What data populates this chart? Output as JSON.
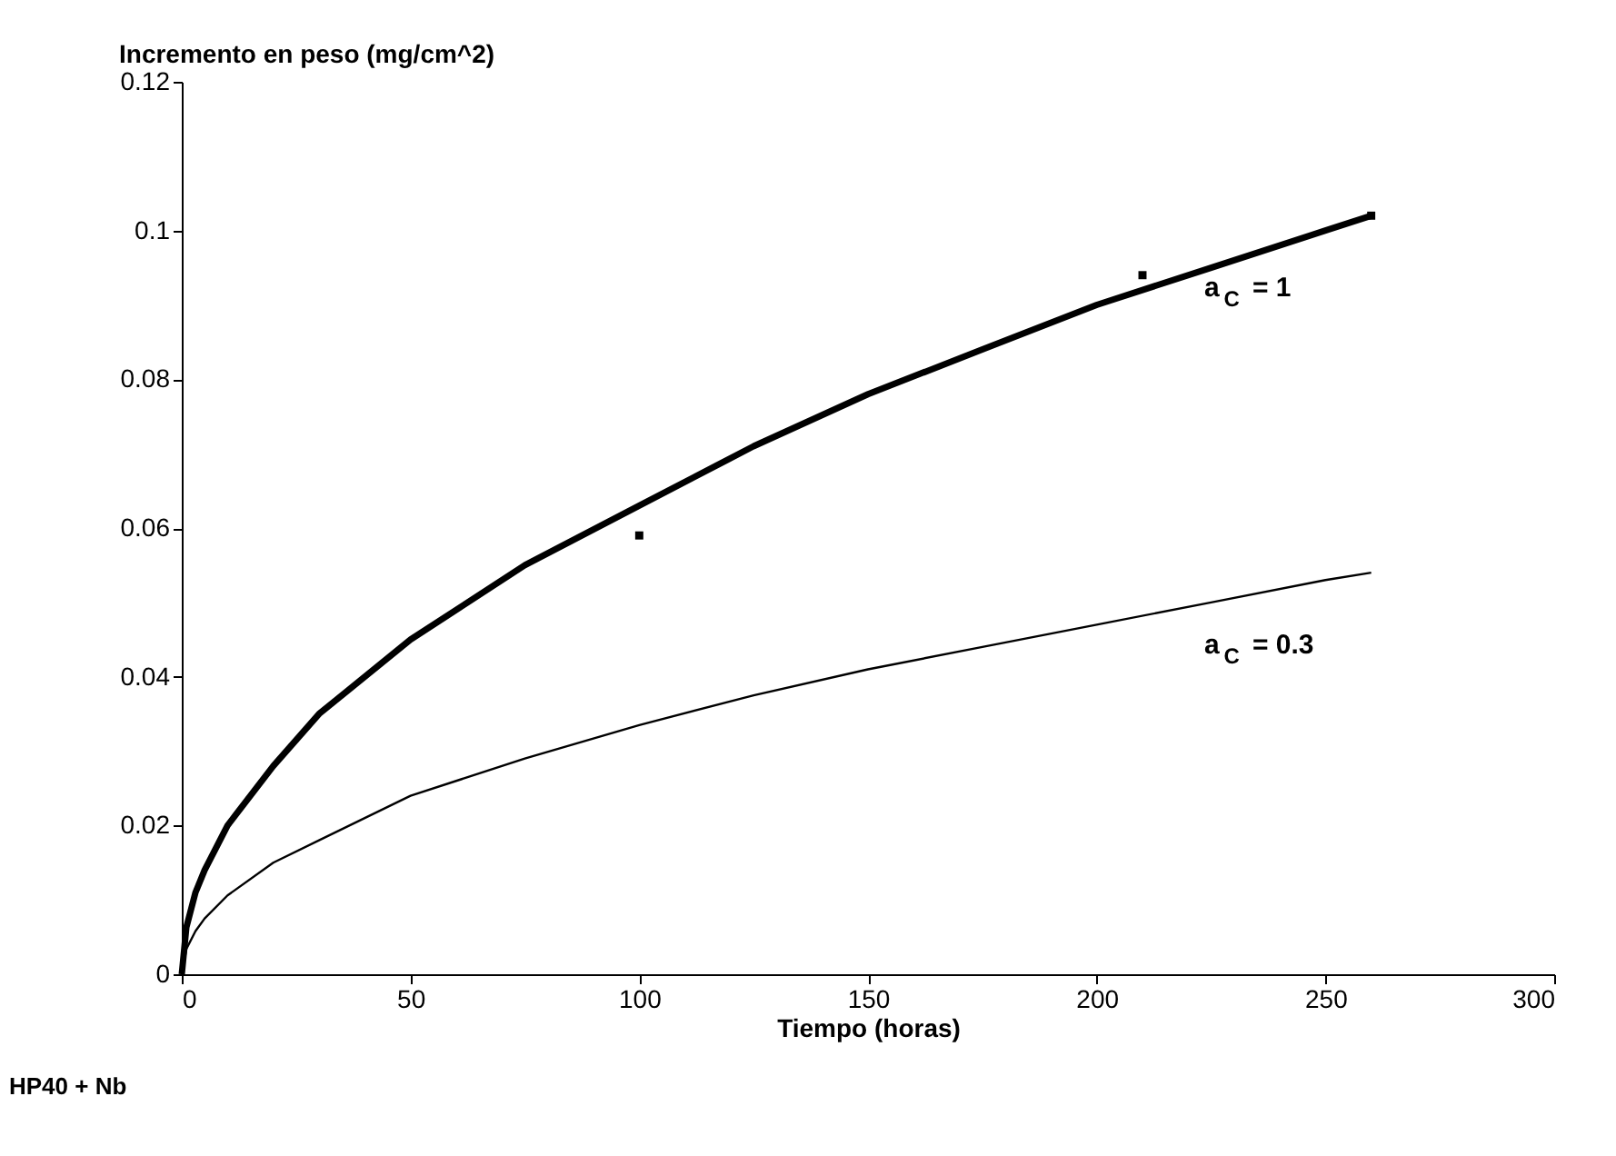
{
  "chart_data": {
    "type": "line",
    "xlabel": "Tiempo (horas)",
    "ylabel": "Incremento en peso (mg/cm^2)",
    "xlim": [
      0,
      300
    ],
    "xticks": [
      0,
      50,
      100,
      150,
      200,
      250,
      300
    ],
    "ylim": [
      0,
      0.12
    ],
    "yticks": [
      0,
      0.02,
      0.04,
      0.06,
      0.08,
      0.1,
      0.12
    ],
    "grid": false,
    "series": [
      {
        "color": "#000000",
        "x": [
          0,
          1,
          3,
          5,
          10,
          20,
          30,
          50,
          75,
          100,
          125,
          150,
          175,
          200,
          225,
          250,
          260
        ],
        "values": [
          0,
          0.0063,
          0.011,
          0.014,
          0.02,
          0.028,
          0.035,
          0.045,
          0.055,
          0.063,
          0.071,
          0.078,
          0.084,
          0.09,
          0.095,
          0.1,
          0.102
        ]
      },
      {
        "color": "#000000",
        "x": [
          0,
          1,
          3,
          5,
          10,
          20,
          30,
          50,
          75,
          100,
          125,
          150,
          175,
          200,
          225,
          250,
          260
        ],
        "values": [
          0,
          0.0034,
          0.0058,
          0.0075,
          0.0106,
          0.015,
          0.018,
          0.024,
          0.029,
          0.0335,
          0.0375,
          0.041,
          0.044,
          0.047,
          0.05,
          0.053,
          0.054
        ]
      },
      {
        "type": "scatter",
        "marker": "square",
        "color": "#000000",
        "x": [
          100,
          210,
          260
        ],
        "values": [
          0.059,
          0.094,
          0.102
        ]
      }
    ],
    "annotations": [
      "a$_{C}$ = 1",
      "a$_{C}$ = 0.3",
      "HP40 + Nb"
    ]
  }
}
